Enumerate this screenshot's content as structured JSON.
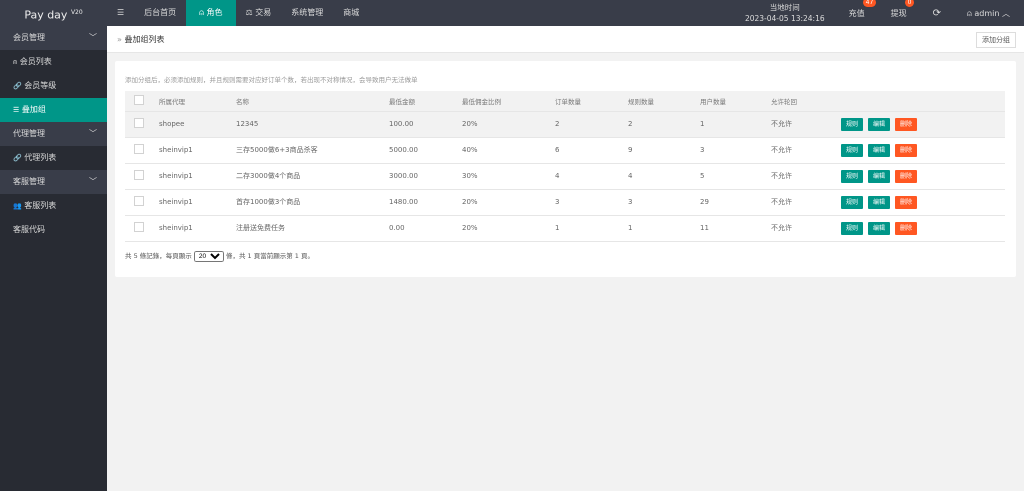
{
  "app": {
    "name": "Pay day",
    "version": "V20"
  },
  "topnav": {
    "menu_icon": "hamburger-icon",
    "items": [
      {
        "label": "后台首页"
      },
      {
        "label": "角色",
        "icon": "user-icon",
        "active": true
      },
      {
        "label": "交易",
        "icon": "scale-icon"
      },
      {
        "label": "系统管理"
      },
      {
        "label": "商城"
      }
    ]
  },
  "header": {
    "time_label": "当地时间",
    "time_value": "2023-04-05 13:24:16",
    "recharge": "充值",
    "recharge_count": "47",
    "withdraw": "提现",
    "withdraw_count": "0",
    "user": "admin"
  },
  "sidebar": [
    {
      "type": "group",
      "label": "会员管理"
    },
    {
      "type": "item",
      "label": "会员列表",
      "icon": "user-icon"
    },
    {
      "type": "item",
      "label": "会员等级",
      "icon": "link-icon"
    },
    {
      "type": "item",
      "label": "叠加组",
      "icon": "list-icon",
      "active": true
    },
    {
      "type": "group",
      "label": "代理管理"
    },
    {
      "type": "item",
      "label": "代理列表",
      "icon": "link-icon"
    },
    {
      "type": "group",
      "label": "客服管理"
    },
    {
      "type": "item",
      "label": "客服列表",
      "icon": "users-icon"
    },
    {
      "type": "item",
      "label": "客服代码",
      "icon": "code-icon"
    }
  ],
  "breadcrumb": "叠加组列表",
  "add_button": "添加分组",
  "tip": "添加分组后，必须添加规则，并且规则需要对应好订单个数，若出现不对称情况，会导致用户无法做单",
  "table": {
    "columns": [
      "所属代理",
      "名称",
      "最低金额",
      "最低佣金比例",
      "订单数量",
      "规则数量",
      "用户数量",
      "允许轮回"
    ],
    "actions": {
      "rule": "规则",
      "edit": "编辑",
      "delete": "删除"
    },
    "rows": [
      [
        "shopee",
        "12345",
        "100.00",
        "20%",
        "2",
        "2",
        "1",
        "不允许"
      ],
      [
        "sheinvip1",
        "三存5000做6+3商品杀客",
        "5000.00",
        "40%",
        "6",
        "9",
        "3",
        "不允许"
      ],
      [
        "sheinvip1",
        "二存3000做4个商品",
        "3000.00",
        "30%",
        "4",
        "4",
        "5",
        "不允许"
      ],
      [
        "sheinvip1",
        "首存1000做3个商品",
        "1480.00",
        "20%",
        "3",
        "3",
        "29",
        "不允许"
      ],
      [
        "sheinvip1",
        "注册送免费任务",
        "0.00",
        "20%",
        "1",
        "1",
        "11",
        "不允许"
      ]
    ]
  },
  "pager": {
    "prefix": "共 5 條記錄，每頁顯示",
    "page_size": "20",
    "suffix": "條，共 1 頁當前顯示第 1 頁。"
  },
  "colors": {
    "accent": "#009688",
    "danger": "#ff5722",
    "topbar": "#393d49"
  }
}
